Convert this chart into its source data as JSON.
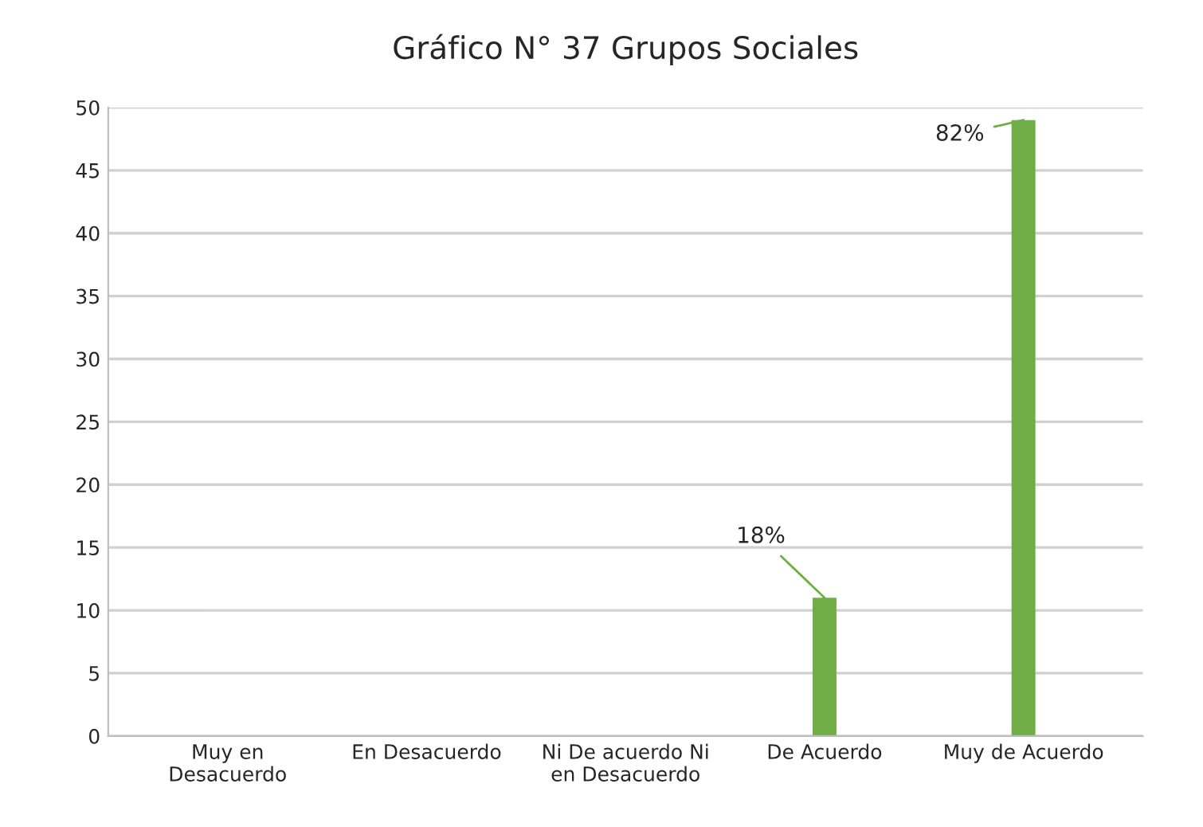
{
  "chart_data": {
    "type": "bar",
    "title": "Gráfico N° 37 Grupos Sociales",
    "categories": [
      "Muy en\nDesacuerdo",
      "En Desacuerdo",
      "Ni De acuerdo Ni\nen Desacuerdo",
      "De Acuerdo",
      "Muy de Acuerdo"
    ],
    "values": [
      0,
      0,
      0,
      11,
      49
    ],
    "annotations": [
      {
        "text": "18%",
        "x": "De Acuerdo",
        "y": 11
      },
      {
        "text": "82%",
        "x": "Muy de Acuerdo",
        "y": 49
      }
    ],
    "color": "#70ad47",
    "ylim": [
      0,
      50
    ],
    "yticks": [
      0,
      5,
      10,
      15,
      20,
      25,
      30,
      35,
      40,
      45,
      50
    ],
    "grid": "y"
  }
}
